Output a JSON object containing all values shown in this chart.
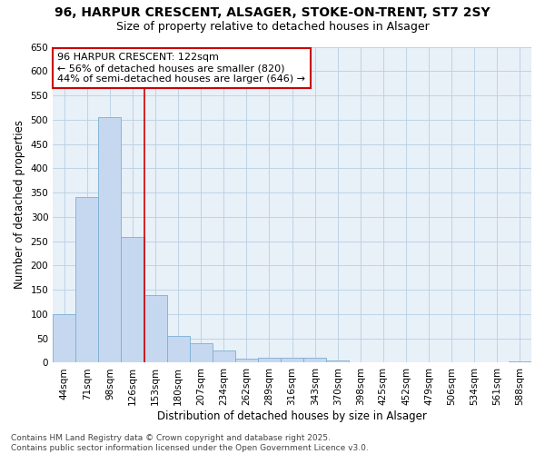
{
  "title": "96, HARPUR CRESCENT, ALSAGER, STOKE-ON-TRENT, ST7 2SY",
  "subtitle": "Size of property relative to detached houses in Alsager",
  "xlabel": "Distribution of detached houses by size in Alsager",
  "ylabel": "Number of detached properties",
  "bar_labels": [
    "44sqm",
    "71sqm",
    "98sqm",
    "126sqm",
    "153sqm",
    "180sqm",
    "207sqm",
    "234sqm",
    "262sqm",
    "289sqm",
    "316sqm",
    "343sqm",
    "370sqm",
    "398sqm",
    "425sqm",
    "452sqm",
    "479sqm",
    "506sqm",
    "534sqm",
    "561sqm",
    "588sqm"
  ],
  "bar_values": [
    100,
    340,
    505,
    258,
    140,
    55,
    40,
    25,
    8,
    11,
    11,
    10,
    5,
    0,
    0,
    0,
    0,
    0,
    0,
    0,
    3
  ],
  "bar_color": "#c5d8f0",
  "bar_edge_color": "#7bafd4",
  "vline_x": 3.5,
  "vline_color": "#cc0000",
  "annotation_text": "96 HARPUR CRESCENT: 122sqm\n← 56% of detached houses are smaller (820)\n44% of semi-detached houses are larger (646) →",
  "annotation_box_color": "#ffffff",
  "annotation_box_edge": "#cc0000",
  "ylim": [
    0,
    650
  ],
  "yticks": [
    0,
    50,
    100,
    150,
    200,
    250,
    300,
    350,
    400,
    450,
    500,
    550,
    600,
    650
  ],
  "grid_color": "#b8cfe4",
  "background_color": "#ffffff",
  "plot_bg_color": "#e8f0f8",
  "footnote": "Contains HM Land Registry data © Crown copyright and database right 2025.\nContains public sector information licensed under the Open Government Licence v3.0.",
  "title_fontsize": 10,
  "subtitle_fontsize": 9,
  "axis_label_fontsize": 8.5,
  "tick_fontsize": 7.5,
  "footnote_fontsize": 6.5,
  "annotation_fontsize": 8
}
